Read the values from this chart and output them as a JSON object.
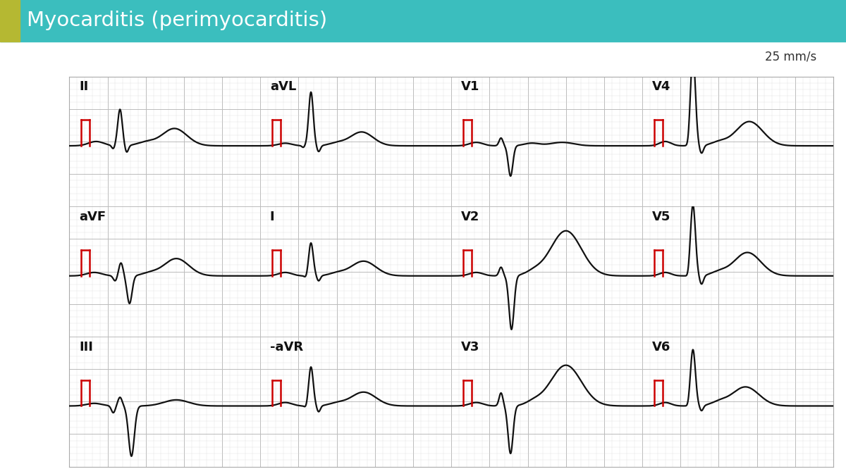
{
  "title": "Myocarditis (perimyocarditis)",
  "title_bg": "#3bbebe",
  "title_accent": "#b5b832",
  "title_color": "#ffffff",
  "speed_label": "25 mm/s",
  "bg_color": "#ffffff",
  "grid_minor_color": "#d8d8d8",
  "grid_major_color": "#bbbbbb",
  "ecg_color": "#111111",
  "cal_color": "#cc0000",
  "leads": [
    {
      "name": "II",
      "row": 0,
      "col": 0
    },
    {
      "name": "aVL",
      "row": 0,
      "col": 1
    },
    {
      "name": "V1",
      "row": 0,
      "col": 2
    },
    {
      "name": "V4",
      "row": 0,
      "col": 3
    },
    {
      "name": "aVF",
      "row": 1,
      "col": 0
    },
    {
      "name": "I",
      "row": 1,
      "col": 1
    },
    {
      "name": "V2",
      "row": 1,
      "col": 2
    },
    {
      "name": "V5",
      "row": 1,
      "col": 3
    },
    {
      "name": "III",
      "row": 2,
      "col": 0
    },
    {
      "name": "-aVR",
      "row": 2,
      "col": 1
    },
    {
      "name": "V3",
      "row": 2,
      "col": 2
    },
    {
      "name": "V6",
      "row": 2,
      "col": 3
    }
  ]
}
